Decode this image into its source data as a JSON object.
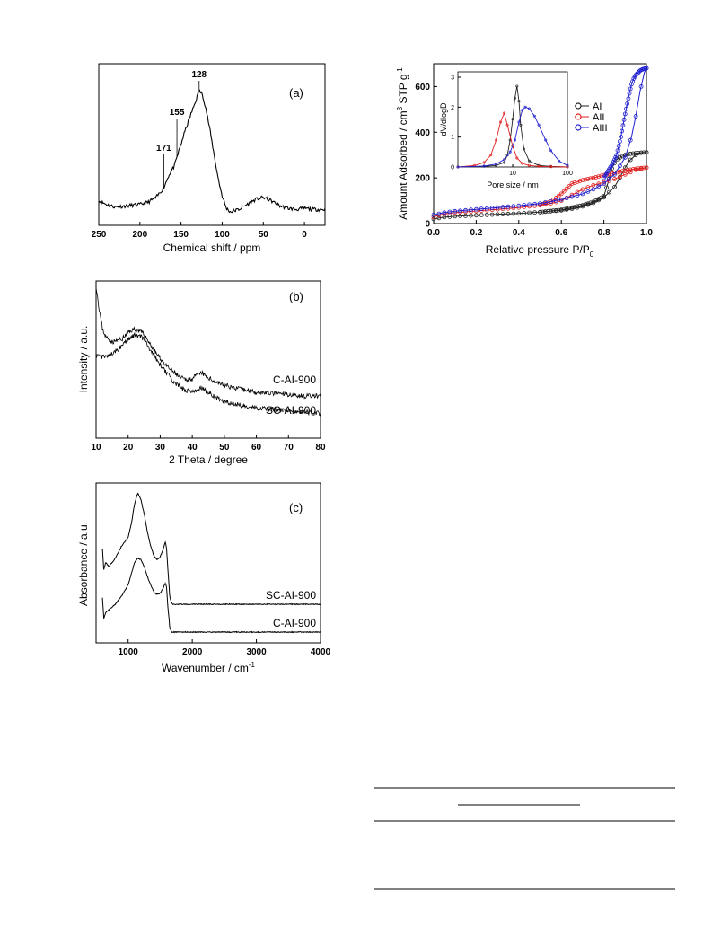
{
  "chart_data": [
    {
      "id": "a",
      "type": "line",
      "panel_label": "(a)",
      "xlabel": "Chemical shift / ppm",
      "ylabel": "",
      "xlim": [
        250,
        -25
      ],
      "x_ticks": [
        "250",
        "200",
        "150",
        "100",
        "50",
        "0"
      ],
      "x_tick_values": [
        250,
        200,
        150,
        100,
        50,
        0
      ],
      "annotations": [
        {
          "label": "171",
          "x": 171
        },
        {
          "label": "155",
          "x": 155
        },
        {
          "label": "128",
          "x": 128
        }
      ],
      "series": [
        {
          "values_x": [
            250,
            240,
            230,
            215,
            200,
            190,
            180,
            171,
            165,
            158,
            155,
            150,
            145,
            140,
            135,
            130,
            128,
            124,
            120,
            115,
            110,
            105,
            100,
            95,
            90,
            80,
            70,
            60,
            50,
            40,
            30,
            20,
            10,
            0,
            -10,
            -20,
            -25
          ],
          "values_y": [
            0.09,
            0.06,
            0.04,
            0.05,
            0.06,
            0.08,
            0.12,
            0.2,
            0.3,
            0.38,
            0.45,
            0.56,
            0.67,
            0.77,
            0.86,
            0.96,
            1.0,
            0.97,
            0.86,
            0.68,
            0.48,
            0.28,
            0.13,
            0.03,
            0.0,
            0.02,
            0.06,
            0.1,
            0.12,
            0.09,
            0.05,
            0.03,
            0.02,
            0.03,
            0.02,
            0.02,
            0.02
          ]
        }
      ]
    },
    {
      "id": "b",
      "type": "line",
      "panel_label": "(b)",
      "xlabel": "2 Theta / degree",
      "ylabel": "Intensity / a.u.",
      "xlim": [
        10,
        80
      ],
      "x_ticks": [
        "10",
        "20",
        "30",
        "40",
        "50",
        "60",
        "70",
        "80"
      ],
      "x_tick_values": [
        10,
        20,
        30,
        40,
        50,
        60,
        70,
        80
      ],
      "series": [
        {
          "name": "C-AI-900",
          "values_x": [
            10,
            11,
            12,
            13,
            15,
            18,
            20,
            22,
            24,
            26,
            28,
            30,
            32,
            34,
            36,
            38,
            40,
            42,
            43,
            44,
            46,
            50,
            55,
            60,
            65,
            70,
            75,
            80
          ],
          "values_y": [
            1.0,
            0.82,
            0.68,
            0.62,
            0.58,
            0.6,
            0.65,
            0.68,
            0.66,
            0.6,
            0.52,
            0.46,
            0.4,
            0.36,
            0.32,
            0.3,
            0.31,
            0.34,
            0.35,
            0.33,
            0.3,
            0.26,
            0.23,
            0.21,
            0.2,
            0.19,
            0.18,
            0.18
          ]
        },
        {
          "name": "SC-AI-900",
          "values_x": [
            10,
            12,
            14,
            16,
            18,
            20,
            22,
            24,
            26,
            28,
            30,
            32,
            34,
            36,
            38,
            40,
            42,
            43,
            44,
            46,
            50,
            55,
            60,
            65,
            70,
            75,
            80
          ],
          "values_y": [
            0.48,
            0.47,
            0.48,
            0.51,
            0.55,
            0.6,
            0.63,
            0.62,
            0.56,
            0.48,
            0.41,
            0.35,
            0.29,
            0.25,
            0.22,
            0.21,
            0.23,
            0.24,
            0.22,
            0.19,
            0.14,
            0.11,
            0.09,
            0.08,
            0.07,
            0.06,
            0.05
          ]
        }
      ]
    },
    {
      "id": "c",
      "type": "line",
      "panel_label": "(c)",
      "xlabel": "Wavenumber / cm",
      "xlabel_sup": "-1",
      "ylabel": "Absorbance / a.u.",
      "xlim": [
        500,
        4000
      ],
      "x_ticks": [
        "1000",
        "2000",
        "3000",
        "4000"
      ],
      "x_tick_values": [
        1000,
        2000,
        3000,
        4000
      ],
      "series": [
        {
          "name": "SC-AI-900",
          "values_x": [
            600,
            620,
            650,
            700,
            800,
            900,
            1000,
            1050,
            1100,
            1150,
            1200,
            1250,
            1300,
            1350,
            1400,
            1450,
            1500,
            1550,
            1580,
            1600,
            1620,
            1650,
            1680,
            1700,
            2000,
            3000,
            4000
          ],
          "values_y": [
            0.6,
            0.45,
            0.5,
            0.47,
            0.53,
            0.62,
            0.68,
            0.78,
            0.92,
            1.0,
            0.95,
            0.85,
            0.72,
            0.62,
            0.55,
            0.52,
            0.54,
            0.6,
            0.65,
            0.6,
            0.45,
            0.25,
            0.21,
            0.2,
            0.2,
            0.2,
            0.2
          ]
        },
        {
          "name": "C-AI-900",
          "values_x": [
            600,
            620,
            650,
            700,
            800,
            900,
            1000,
            1050,
            1100,
            1150,
            1200,
            1250,
            1300,
            1350,
            1400,
            1450,
            1500,
            1550,
            1580,
            1600,
            1620,
            1650,
            1680,
            1700,
            2000,
            3000,
            4000
          ],
          "values_y": [
            0.25,
            0.1,
            0.14,
            0.16,
            0.2,
            0.26,
            0.34,
            0.42,
            0.5,
            0.53,
            0.52,
            0.47,
            0.4,
            0.34,
            0.29,
            0.27,
            0.28,
            0.32,
            0.35,
            0.32,
            0.18,
            0.03,
            0.0,
            0.0,
            0.0,
            0.0,
            0.0
          ]
        }
      ]
    },
    {
      "id": "d",
      "type": "scatter",
      "xlabel": "Relative pressure P/P",
      "xlabel_sub": "0",
      "ylabel": "Amount Adsorbed / cm",
      "ylabel_sup": "3",
      "ylabel_tail": " STP g",
      "ylabel_sup2": "-1",
      "xlim": [
        0,
        1
      ],
      "ylim": [
        0,
        700
      ],
      "x_ticks": [
        "0.0",
        "0.2",
        "0.4",
        "0.6",
        "0.8",
        "1.0"
      ],
      "x_tick_values": [
        0,
        0.2,
        0.4,
        0.6,
        0.8,
        1.0
      ],
      "y_ticks": [
        "0",
        "200",
        "400",
        "600"
      ],
      "y_tick_values": [
        0,
        200,
        400,
        600
      ],
      "legend": [
        "AI",
        "AII",
        "AIII"
      ],
      "colors": [
        "#222222",
        "#e02020",
        "#2020d0"
      ],
      "series": [
        {
          "name": "AI",
          "adsorption_x": [
            0.0,
            0.05,
            0.1,
            0.2,
            0.3,
            0.4,
            0.5,
            0.6,
            0.65,
            0.7,
            0.75,
            0.8,
            0.85,
            0.88,
            0.9,
            0.92,
            0.95,
            0.97,
            1.0
          ],
          "adsorption_y": [
            20,
            28,
            32,
            36,
            40,
            44,
            50,
            58,
            65,
            75,
            90,
            115,
            160,
            210,
            245,
            275,
            300,
            310,
            312
          ],
          "desorption_x": [
            1.0,
            0.97,
            0.95,
            0.92,
            0.9,
            0.88,
            0.86,
            0.84,
            0.82,
            0.8,
            0.75,
            0.7,
            0.6,
            0.5
          ],
          "desorption_y": [
            312,
            310,
            308,
            305,
            300,
            292,
            280,
            250,
            180,
            120,
            95,
            80,
            60,
            50
          ]
        },
        {
          "name": "AII",
          "adsorption_x": [
            0.0,
            0.05,
            0.1,
            0.2,
            0.3,
            0.4,
            0.5,
            0.55,
            0.6,
            0.65,
            0.7,
            0.75,
            0.8,
            0.85,
            0.9,
            0.95,
            1.0
          ],
          "adsorption_y": [
            30,
            42,
            48,
            55,
            62,
            70,
            80,
            88,
            100,
            125,
            150,
            168,
            180,
            195,
            215,
            235,
            245
          ],
          "desorption_x": [
            1.0,
            0.95,
            0.9,
            0.85,
            0.8,
            0.75,
            0.7,
            0.65,
            0.6,
            0.55,
            0.5
          ],
          "desorption_y": [
            245,
            240,
            232,
            222,
            212,
            200,
            190,
            175,
            130,
            95,
            82
          ]
        },
        {
          "name": "AIII",
          "adsorption_x": [
            0.0,
            0.05,
            0.1,
            0.2,
            0.3,
            0.4,
            0.5,
            0.6,
            0.7,
            0.75,
            0.8,
            0.85,
            0.9,
            0.93,
            0.95,
            0.97,
            0.99,
            1.0
          ],
          "adsorption_y": [
            38,
            48,
            54,
            62,
            70,
            78,
            88,
            105,
            130,
            150,
            175,
            215,
            290,
            380,
            470,
            580,
            660,
            680
          ],
          "desorption_x": [
            1.0,
            0.99,
            0.98,
            0.97,
            0.96,
            0.95,
            0.94,
            0.93,
            0.92,
            0.9,
            0.88,
            0.86,
            0.84,
            0.82,
            0.8
          ],
          "desorption_y": [
            680,
            678,
            675,
            670,
            660,
            650,
            635,
            610,
            570,
            480,
            380,
            300,
            260,
            230,
            200
          ]
        }
      ],
      "inset": {
        "xlabel": "Pore size / nm",
        "ylabel": "dV/dlogD",
        "x_log": true,
        "xlim": [
          1,
          100
        ],
        "ylim": [
          0,
          3
        ],
        "x_ticks": [
          "10",
          "100"
        ],
        "x_tick_values": [
          10,
          100
        ],
        "y_ticks": [
          "0",
          "1",
          "2",
          "3"
        ],
        "y_tick_values": [
          0,
          1,
          2,
          3
        ],
        "series": [
          {
            "name": "AI",
            "x": [
              1,
              3,
              5,
              7,
              8,
              9,
              10,
              11,
              12,
              13,
              14,
              16,
              20,
              30,
              50,
              100
            ],
            "y": [
              0,
              0.02,
              0.05,
              0.15,
              0.4,
              0.9,
              1.6,
              2.3,
              2.7,
              2.2,
              1.4,
              0.6,
              0.2,
              0.05,
              0.02,
              0
            ]
          },
          {
            "name": "AII",
            "x": [
              1,
              2,
              3,
              4,
              5,
              6,
              7,
              8,
              10,
              12,
              15,
              20,
              30,
              50,
              100
            ],
            "y": [
              0,
              0.05,
              0.15,
              0.4,
              0.9,
              1.5,
              1.8,
              1.4,
              0.7,
              0.3,
              0.12,
              0.05,
              0.02,
              0.01,
              0
            ]
          },
          {
            "name": "AIII",
            "x": [
              1,
              3,
              5,
              7,
              9,
              11,
              13,
              15,
              17,
              20,
              25,
              30,
              40,
              50,
              70,
              100
            ],
            "y": [
              0,
              0.03,
              0.1,
              0.25,
              0.5,
              0.9,
              1.5,
              1.9,
              2.0,
              1.95,
              1.7,
              1.4,
              0.9,
              0.55,
              0.2,
              0.05
            ]
          }
        ]
      }
    }
  ]
}
